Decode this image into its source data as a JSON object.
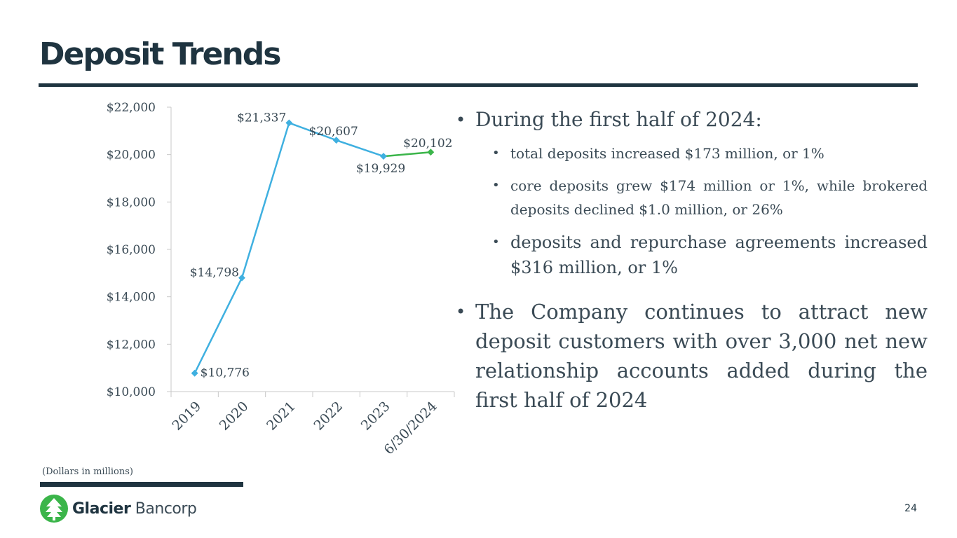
{
  "title": "Deposit Trends",
  "bullets": {
    "b1": "During the first half of 2024:",
    "b2": "total deposits increased $173 million, or 1%",
    "b3": "core deposits grew $174 million or 1%, while brokered deposits declined $1.0 million, or 26%",
    "b4": "deposits and repurchase agreements increased $316 million, or 1%",
    "b5": "The Company continues to attract new deposit customers with over 3,000 net new relationship accounts added during the first half of 2024"
  },
  "footnote": "(Dollars in millions)",
  "logo": {
    "strong": "Glacier",
    "light": "Bancorp",
    "icon": "tree-logo-icon"
  },
  "page_number": "24",
  "colors": {
    "primary": "#1f3440",
    "series_blue": "#3fb0e0",
    "series_green": "#3bb54a",
    "text": "#3a4a55"
  },
  "chart_data": {
    "type": "line",
    "categories": [
      "2019",
      "2020",
      "2021",
      "2022",
      "2023",
      "6/30/2024"
    ],
    "values": [
      10776,
      14798,
      21337,
      20607,
      19929,
      20102
    ],
    "data_labels": [
      "$10,776",
      "$14,798",
      "$21,337",
      "$20,607",
      "$19,929",
      "$20,102"
    ],
    "y_ticks": [
      "$10,000",
      "$12,000",
      "$14,000",
      "$16,000",
      "$18,000",
      "$20,000",
      "$22,000"
    ],
    "ylim": [
      10000,
      22000
    ],
    "grid": false,
    "legend": "none",
    "segment_colors": [
      "#3fb0e0",
      "#3fb0e0",
      "#3fb0e0",
      "#3fb0e0",
      "#3bb54a"
    ]
  }
}
